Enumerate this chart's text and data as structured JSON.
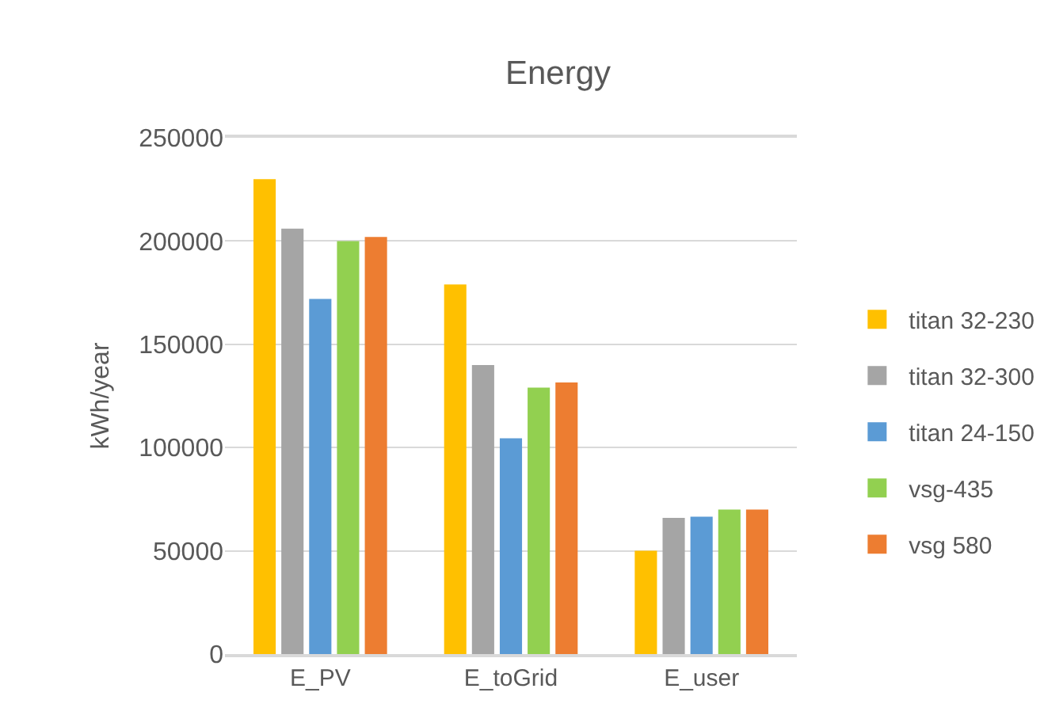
{
  "chart_data": {
    "type": "bar",
    "title": "Energy",
    "ylabel": "kWh/year",
    "categories": [
      "E_PV",
      "E_toGrid",
      "E_user"
    ],
    "series": [
      {
        "name": "titan 32-230",
        "color": "#ffc000",
        "values": [
          230000,
          179000,
          50000
        ]
      },
      {
        "name": "titan 32-300",
        "color": "#a5a5a5",
        "values": [
          206000,
          140000,
          66000
        ]
      },
      {
        "name": "titan 24-150",
        "color": "#5b9bd5",
        "values": [
          172000,
          104500,
          66500
        ]
      },
      {
        "name": "vsg-435",
        "color": "#92d050",
        "values": [
          200000,
          129000,
          70000
        ]
      },
      {
        "name": "vsg 580",
        "color": "#ed7d31",
        "values": [
          202000,
          131500,
          70000
        ]
      }
    ],
    "ylim": [
      0,
      250000
    ],
    "yticks": [
      0,
      50000,
      100000,
      150000,
      200000,
      250000
    ],
    "grid": "y",
    "legend": "right"
  }
}
